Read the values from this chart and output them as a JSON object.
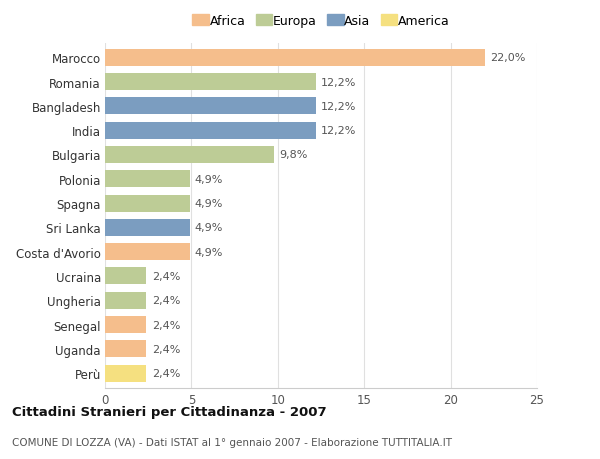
{
  "categories": [
    "Marocco",
    "Romania",
    "Bangladesh",
    "India",
    "Bulgaria",
    "Polonia",
    "Spagna",
    "Sri Lanka",
    "Costa d'Avorio",
    "Ucraina",
    "Ungheria",
    "Senegal",
    "Uganda",
    "Perù"
  ],
  "values": [
    22.0,
    12.2,
    12.2,
    12.2,
    9.8,
    4.9,
    4.9,
    4.9,
    4.9,
    2.4,
    2.4,
    2.4,
    2.4,
    2.4
  ],
  "labels": [
    "22,0%",
    "12,2%",
    "12,2%",
    "12,2%",
    "9,8%",
    "4,9%",
    "4,9%",
    "4,9%",
    "4,9%",
    "2,4%",
    "2,4%",
    "2,4%",
    "2,4%",
    "2,4%"
  ],
  "colors": [
    "#F5BE8C",
    "#BDCC96",
    "#7B9DC0",
    "#7B9DC0",
    "#BDCC96",
    "#BDCC96",
    "#BDCC96",
    "#7B9DC0",
    "#F5BE8C",
    "#BDCC96",
    "#BDCC96",
    "#F5BE8C",
    "#F5BE8C",
    "#F5E080"
  ],
  "continent": [
    "Africa",
    "Europa",
    "Asia",
    "Asia",
    "Europa",
    "Europa",
    "Europa",
    "Asia",
    "Africa",
    "Europa",
    "Europa",
    "Africa",
    "Africa",
    "America"
  ],
  "legend_labels": [
    "Africa",
    "Europa",
    "Asia",
    "America"
  ],
  "legend_colors": [
    "#F5BE8C",
    "#BDCC96",
    "#7B9DC0",
    "#F5E080"
  ],
  "title": "Cittadini Stranieri per Cittadinanza - 2007",
  "subtitle": "COMUNE DI LOZZA (VA) - Dati ISTAT al 1° gennaio 2007 - Elaborazione TUTTITALIA.IT",
  "xlim": [
    0,
    25
  ],
  "xticks": [
    0,
    5,
    10,
    15,
    20,
    25
  ],
  "background_color": "#ffffff",
  "grid_color": "#e0e0e0",
  "bar_height": 0.7
}
